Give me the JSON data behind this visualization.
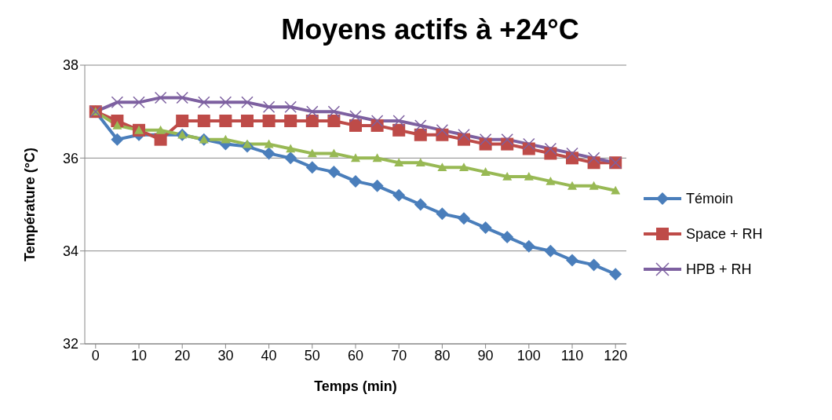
{
  "chart_data": {
    "type": "line",
    "title": "Moyens actifs à +24°C",
    "xlabel": "Temps  (min)",
    "ylabel": "Température (°C)",
    "x": [
      0,
      5,
      10,
      15,
      20,
      25,
      30,
      35,
      40,
      45,
      50,
      55,
      60,
      65,
      70,
      75,
      80,
      85,
      90,
      95,
      100,
      105,
      110,
      115,
      120
    ],
    "xlim": [
      -2.5,
      122.5
    ],
    "xticks": [
      0,
      10,
      20,
      30,
      40,
      50,
      60,
      70,
      80,
      90,
      100,
      110,
      120
    ],
    "ylim": [
      32,
      38
    ],
    "yticks": [
      32,
      34,
      36,
      38
    ],
    "grid": "y",
    "legend": "right",
    "series": [
      {
        "name": "Témoin",
        "color": "#4a7ebb",
        "marker": "diamond",
        "values": [
          37.0,
          36.4,
          36.5,
          36.5,
          36.5,
          36.4,
          36.3,
          36.25,
          36.1,
          36.0,
          35.8,
          35.7,
          35.5,
          35.4,
          35.2,
          35.0,
          34.8,
          34.7,
          34.5,
          34.3,
          34.1,
          34.0,
          33.8,
          33.7,
          33.5
        ]
      },
      {
        "name": "Space + RH",
        "color": "#be4b48",
        "marker": "square",
        "values": [
          37.0,
          36.8,
          36.6,
          36.4,
          36.8,
          36.8,
          36.8,
          36.8,
          36.8,
          36.8,
          36.8,
          36.8,
          36.7,
          36.7,
          36.6,
          36.5,
          36.5,
          36.4,
          36.3,
          36.3,
          36.2,
          36.1,
          36.0,
          35.9,
          35.9
        ]
      },
      {
        "color": "#98b954",
        "marker": "triangle",
        "values": [
          37.0,
          36.7,
          36.6,
          36.6,
          36.5,
          36.4,
          36.4,
          36.3,
          36.3,
          36.2,
          36.1,
          36.1,
          36.0,
          36.0,
          35.9,
          35.9,
          35.8,
          35.8,
          35.7,
          35.6,
          35.6,
          35.5,
          35.4,
          35.4,
          35.3
        ]
      },
      {
        "name": "HPB + RH",
        "color": "#7d60a0",
        "marker": "cross",
        "values": [
          37.0,
          37.2,
          37.2,
          37.3,
          37.3,
          37.2,
          37.2,
          37.2,
          37.1,
          37.1,
          37.0,
          37.0,
          36.9,
          36.8,
          36.8,
          36.7,
          36.6,
          36.5,
          36.4,
          36.4,
          36.3,
          36.2,
          36.1,
          36.0,
          35.9
        ]
      }
    ]
  }
}
